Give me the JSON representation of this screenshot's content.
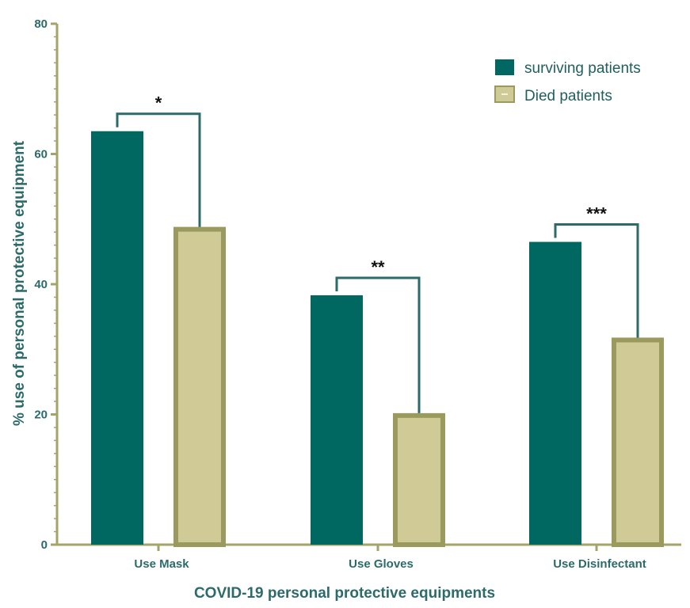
{
  "chart_data": {
    "type": "bar",
    "title": "",
    "xlabel": "COVID-19 personal protective equipments",
    "ylabel": "% use of personal protective equipment",
    "categories": [
      "Use Mask",
      "Use Gloves",
      "Use Disinfectant"
    ],
    "series": [
      {
        "name": "surviving patients",
        "values": [
          63.5,
          38.3,
          46.5
        ],
        "color": "#006860"
      },
      {
        "name": "Died patients",
        "values": [
          48.8,
          20.2,
          31.8
        ],
        "color": "#cfca96",
        "border": "#9a9a5e"
      }
    ],
    "ylim": [
      0,
      80
    ],
    "yticks": [
      0,
      20,
      40,
      60,
      80
    ],
    "significance": [
      "*",
      "**",
      "***"
    ],
    "legend_position": "top-right",
    "grid": false
  }
}
